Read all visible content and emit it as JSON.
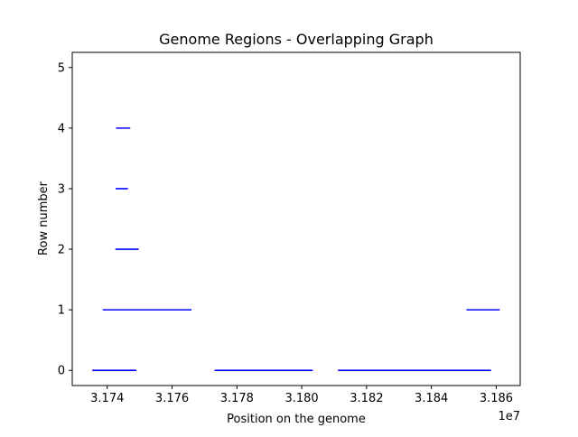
{
  "chart_data": {
    "type": "line",
    "title": "Genome Regions - Overlapping Graph",
    "xlabel": "Position on the genome",
    "ylabel": "Row number",
    "x_offset_label": "1e7",
    "xlim": [
      3.17292,
      3.18674
    ],
    "ylim": [
      -0.25,
      5.25
    ],
    "x_ticks": [
      3.174,
      3.176,
      3.178,
      3.18,
      3.182,
      3.184,
      3.186
    ],
    "x_tick_labels": [
      "3.174",
      "3.176",
      "3.178",
      "3.180",
      "3.182",
      "3.184",
      "3.186"
    ],
    "y_ticks": [
      0,
      1,
      2,
      3,
      4,
      5
    ],
    "y_tick_labels": [
      "0",
      "1",
      "2",
      "3",
      "4",
      "5"
    ],
    "grid": false,
    "line_color": "#0000ff",
    "segments": [
      {
        "row": 0,
        "start": 3.17354,
        "end": 3.1749
      },
      {
        "row": 0,
        "start": 3.17731,
        "end": 3.18034
      },
      {
        "row": 0,
        "start": 3.18112,
        "end": 3.18584
      },
      {
        "row": 1,
        "start": 3.17386,
        "end": 3.1766
      },
      {
        "row": 1,
        "start": 3.18508,
        "end": 3.18611
      },
      {
        "row": 2,
        "start": 3.17425,
        "end": 3.17497
      },
      {
        "row": 3,
        "start": 3.17426,
        "end": 3.17464
      },
      {
        "row": 4,
        "start": 3.17427,
        "end": 3.17471
      }
    ]
  }
}
